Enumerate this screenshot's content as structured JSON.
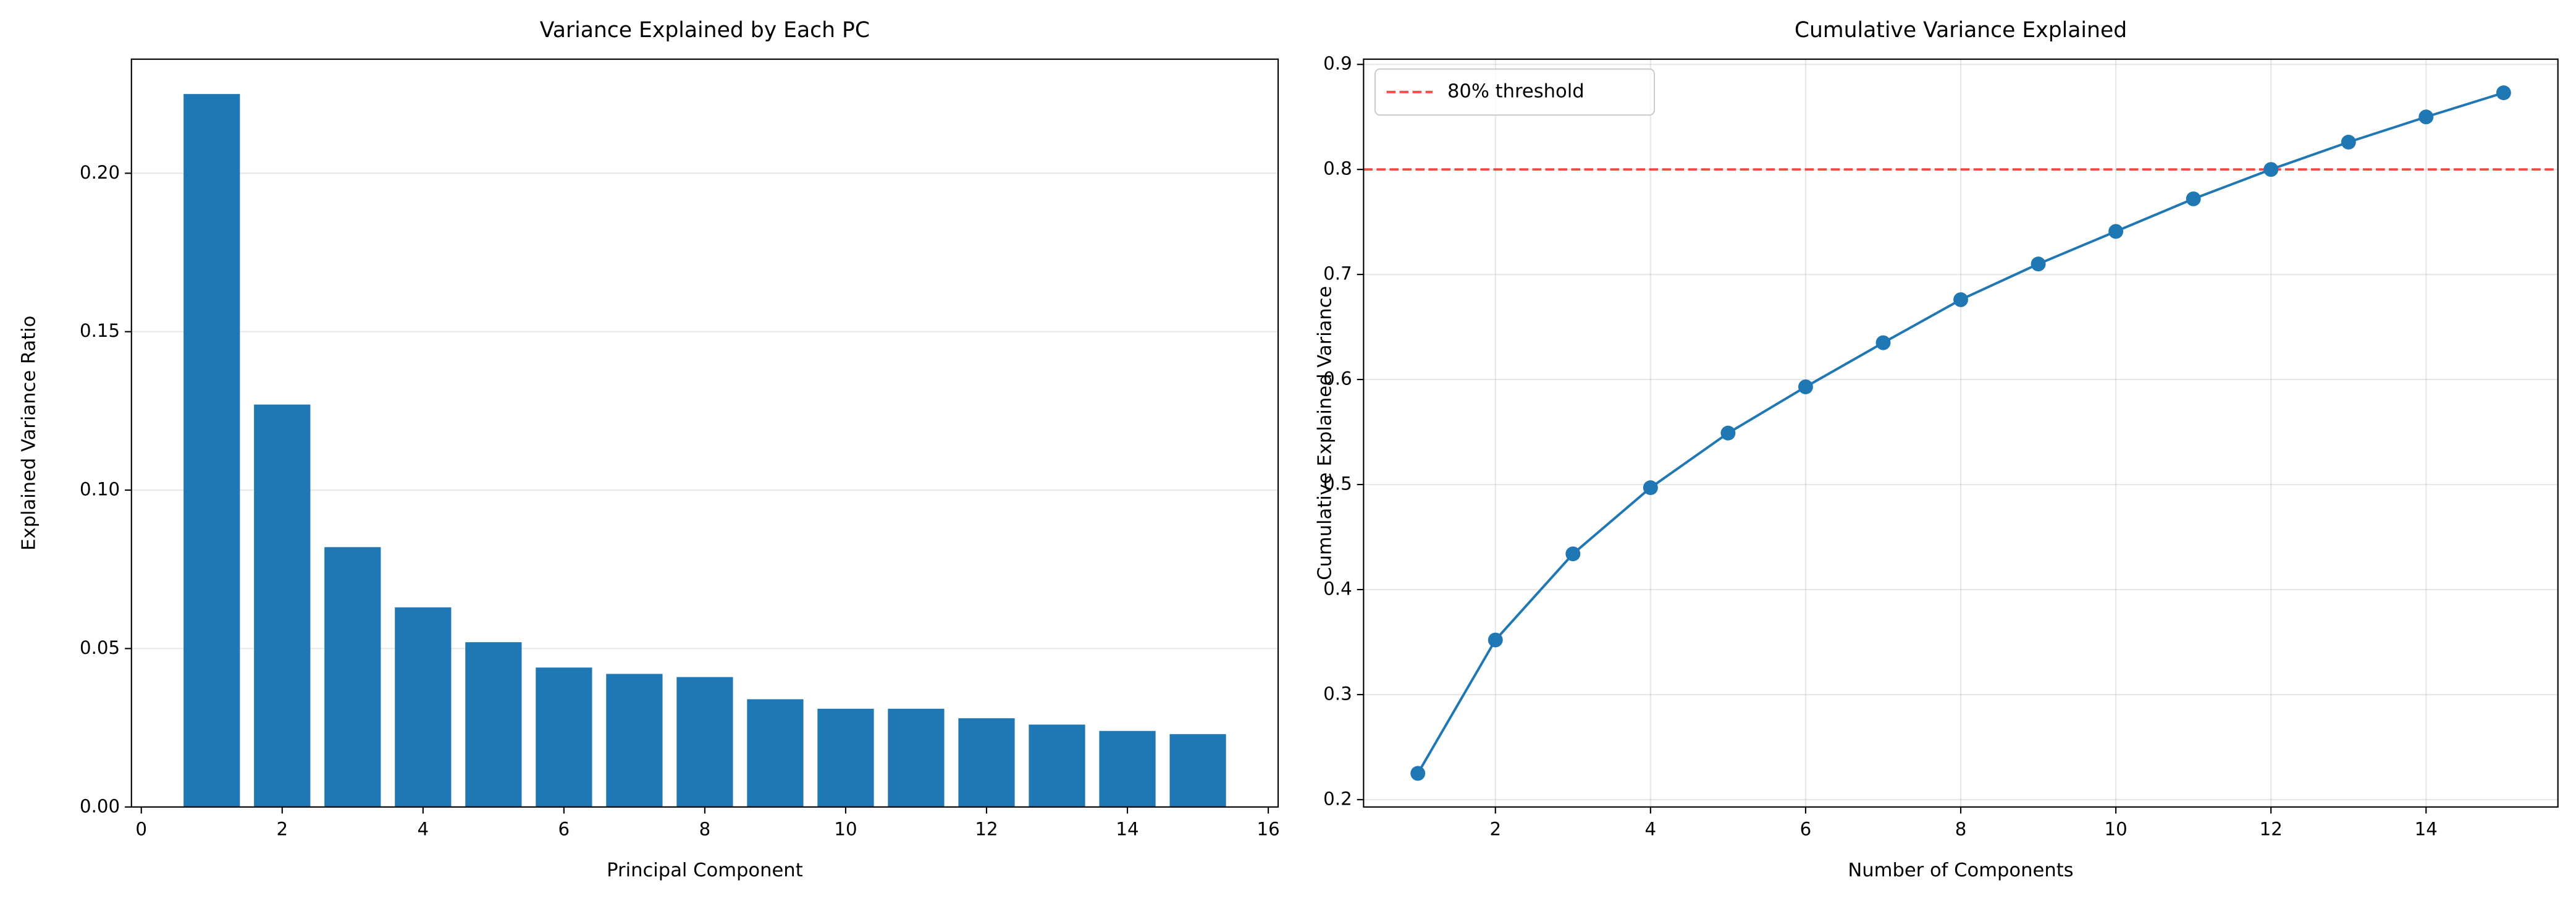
{
  "chart_data": [
    {
      "type": "bar",
      "title": "Variance Explained by Each PC",
      "xlabel": "Principal Component",
      "ylabel": "Explained Variance Ratio",
      "x": [
        1,
        2,
        3,
        4,
        5,
        6,
        7,
        8,
        9,
        10,
        11,
        12,
        13,
        14,
        15
      ],
      "values": [
        0.225,
        0.127,
        0.082,
        0.063,
        0.052,
        0.044,
        0.042,
        0.041,
        0.034,
        0.031,
        0.031,
        0.028,
        0.026,
        0.024,
        0.023
      ],
      "color": "#1f77b4",
      "xlim": [
        -0.14,
        16.14
      ],
      "xticks": [
        0,
        2,
        4,
        6,
        8,
        10,
        12,
        14,
        16
      ],
      "ylim": [
        0,
        0.236
      ],
      "yticks": [
        {
          "value": 0,
          "label": "0.00"
        },
        {
          "value": 0.05,
          "label": "0.05"
        },
        {
          "value": 0.1,
          "label": "0.10"
        },
        {
          "value": 0.15,
          "label": "0.15"
        },
        {
          "value": 0.2,
          "label": "0.20"
        }
      ],
      "grid": "y"
    },
    {
      "type": "line",
      "title": "Cumulative Variance Explained",
      "xlabel": "Number of Components",
      "ylabel": "Cumulative Explained Variance",
      "x": [
        1,
        2,
        3,
        4,
        5,
        6,
        7,
        8,
        9,
        10,
        11,
        12,
        13,
        14,
        15
      ],
      "values": [
        0.225,
        0.352,
        0.434,
        0.497,
        0.549,
        0.593,
        0.635,
        0.676,
        0.71,
        0.741,
        0.772,
        0.8,
        0.826,
        0.85,
        0.873
      ],
      "color": "#1f77b4",
      "xlim": [
        0.3,
        15.7
      ],
      "xticks": [
        2,
        4,
        6,
        8,
        10,
        12,
        14
      ],
      "ylim": [
        0.193,
        0.905
      ],
      "yticks": [
        0.2,
        0.3,
        0.4,
        0.5,
        0.6,
        0.7,
        0.8,
        0.9
      ],
      "grid": "both",
      "reference_line": {
        "value": 0.8,
        "label": "80% threshold",
        "color": "#ff0000",
        "style": "dashed"
      },
      "legend": "upper left"
    }
  ]
}
